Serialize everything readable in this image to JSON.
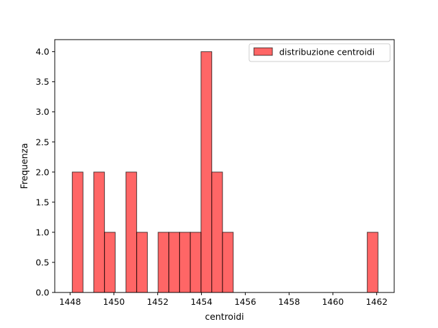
{
  "chart_data": {
    "type": "bar",
    "title": "",
    "xlabel": "centroidi",
    "ylabel": "Frequenza",
    "xlim": [
      1447.3,
      1462.8
    ],
    "ylim": [
      0,
      4.2
    ],
    "xticks": [
      1448,
      1450,
      1452,
      1454,
      1456,
      1458,
      1460,
      1462
    ],
    "yticks": [
      "0.0",
      "0.5",
      "1.0",
      "1.5",
      "2.0",
      "2.5",
      "3.0",
      "3.5",
      "4.0"
    ],
    "grid": false,
    "legend": {
      "placement": "top-right",
      "entries": [
        "distribuzione centroidi"
      ]
    },
    "series": [
      {
        "name": "distribuzione centroidi",
        "color": "#ff0000",
        "edgecolor": "#000000",
        "bars": [
          {
            "x0": 1448.1,
            "x1": 1448.59,
            "value": 2
          },
          {
            "x0": 1449.08,
            "x1": 1449.57,
            "value": 2
          },
          {
            "x0": 1449.57,
            "x1": 1450.06,
            "value": 1
          },
          {
            "x0": 1450.55,
            "x1": 1451.04,
            "value": 2
          },
          {
            "x0": 1451.04,
            "x1": 1451.53,
            "value": 1
          },
          {
            "x0": 1452.02,
            "x1": 1452.51,
            "value": 1
          },
          {
            "x0": 1452.51,
            "x1": 1453.0,
            "value": 1
          },
          {
            "x0": 1453.0,
            "x1": 1453.49,
            "value": 1
          },
          {
            "x0": 1453.49,
            "x1": 1453.98,
            "value": 1
          },
          {
            "x0": 1453.98,
            "x1": 1454.47,
            "value": 4
          },
          {
            "x0": 1454.47,
            "x1": 1454.96,
            "value": 2
          },
          {
            "x0": 1454.96,
            "x1": 1455.45,
            "value": 1
          },
          {
            "x0": 1461.57,
            "x1": 1462.06,
            "value": 1
          }
        ]
      }
    ]
  }
}
